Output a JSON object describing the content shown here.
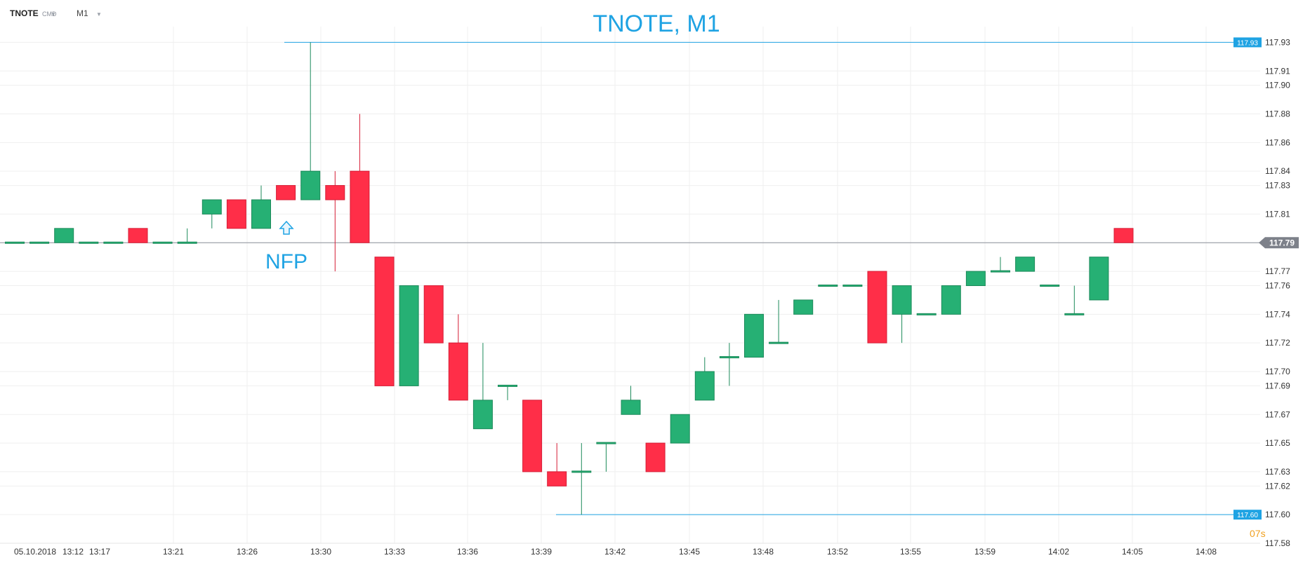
{
  "toolbar": {
    "symbol": "TNOTE",
    "type": "CMD",
    "interval": "M1"
  },
  "chart_data": {
    "type": "candlestick",
    "title": "TNOTE, M1",
    "annotation": "NFP",
    "countdown": "07s",
    "ylim": [
      117.58,
      117.94
    ],
    "y_ticks": [
      "117.93",
      "117.91",
      "117.90",
      "117.88",
      "117.86",
      "117.84",
      "117.83",
      "117.81",
      "117.79",
      "117.77",
      "117.76",
      "117.74",
      "117.72",
      "117.70",
      "117.69",
      "117.67",
      "117.65",
      "117.63",
      "117.62",
      "117.60",
      "117.58"
    ],
    "x_labels": [
      "05.10.2018",
      "13:12",
      "13:17",
      "13:21",
      "13:26",
      "13:30",
      "13:33",
      "13:36",
      "13:39",
      "13:42",
      "13:45",
      "13:48",
      "13:52",
      "13:55",
      "13:59",
      "14:02",
      "14:05",
      "14:08"
    ],
    "current_price": "117.79",
    "high_line": "117.93",
    "low_line": "117.60",
    "up_color": "#26b074",
    "down_color": "#ff2e48",
    "candles": [
      {
        "o": 117.79,
        "h": 117.79,
        "l": 117.79,
        "c": 117.79
      },
      {
        "o": 117.79,
        "h": 117.79,
        "l": 117.79,
        "c": 117.79
      },
      {
        "o": 117.79,
        "h": 117.8,
        "l": 117.79,
        "c": 117.8
      },
      {
        "o": 117.79,
        "h": 117.79,
        "l": 117.79,
        "c": 117.79
      },
      {
        "o": 117.79,
        "h": 117.79,
        "l": 117.79,
        "c": 117.79
      },
      {
        "o": 117.8,
        "h": 117.8,
        "l": 117.79,
        "c": 117.79
      },
      {
        "o": 117.79,
        "h": 117.79,
        "l": 117.79,
        "c": 117.79
      },
      {
        "o": 117.79,
        "h": 117.8,
        "l": 117.79,
        "c": 117.79
      },
      {
        "o": 117.81,
        "h": 117.82,
        "l": 117.8,
        "c": 117.82
      },
      {
        "o": 117.82,
        "h": 117.82,
        "l": 117.8,
        "c": 117.8
      },
      {
        "o": 117.8,
        "h": 117.83,
        "l": 117.8,
        "c": 117.82
      },
      {
        "o": 117.83,
        "h": 117.83,
        "l": 117.82,
        "c": 117.82
      },
      {
        "o": 117.82,
        "h": 117.93,
        "l": 117.82,
        "c": 117.84
      },
      {
        "o": 117.83,
        "h": 117.84,
        "l": 117.77,
        "c": 117.82
      },
      {
        "o": 117.84,
        "h": 117.88,
        "l": 117.79,
        "c": 117.79
      },
      {
        "o": 117.78,
        "h": 117.78,
        "l": 117.69,
        "c": 117.69
      },
      {
        "o": 117.69,
        "h": 117.76,
        "l": 117.69,
        "c": 117.76
      },
      {
        "o": 117.76,
        "h": 117.76,
        "l": 117.72,
        "c": 117.72
      },
      {
        "o": 117.72,
        "h": 117.74,
        "l": 117.68,
        "c": 117.68
      },
      {
        "o": 117.66,
        "h": 117.72,
        "l": 117.66,
        "c": 117.68
      },
      {
        "o": 117.69,
        "h": 117.69,
        "l": 117.68,
        "c": 117.69
      },
      {
        "o": 117.68,
        "h": 117.68,
        "l": 117.63,
        "c": 117.63
      },
      {
        "o": 117.63,
        "h": 117.65,
        "l": 117.62,
        "c": 117.62
      },
      {
        "o": 117.63,
        "h": 117.65,
        "l": 117.6,
        "c": 117.63
      },
      {
        "o": 117.65,
        "h": 117.65,
        "l": 117.63,
        "c": 117.65
      },
      {
        "o": 117.67,
        "h": 117.69,
        "l": 117.67,
        "c": 117.68
      },
      {
        "o": 117.65,
        "h": 117.65,
        "l": 117.63,
        "c": 117.63
      },
      {
        "o": 117.65,
        "h": 117.67,
        "l": 117.65,
        "c": 117.67
      },
      {
        "o": 117.68,
        "h": 117.71,
        "l": 117.68,
        "c": 117.7
      },
      {
        "o": 117.71,
        "h": 117.72,
        "l": 117.69,
        "c": 117.71
      },
      {
        "o": 117.71,
        "h": 117.74,
        "l": 117.71,
        "c": 117.74
      },
      {
        "o": 117.72,
        "h": 117.75,
        "l": 117.72,
        "c": 117.72
      },
      {
        "o": 117.74,
        "h": 117.75,
        "l": 117.74,
        "c": 117.75
      },
      {
        "o": 117.76,
        "h": 117.76,
        "l": 117.76,
        "c": 117.76
      },
      {
        "o": 117.76,
        "h": 117.76,
        "l": 117.76,
        "c": 117.76
      },
      {
        "o": 117.77,
        "h": 117.77,
        "l": 117.72,
        "c": 117.72
      },
      {
        "o": 117.74,
        "h": 117.76,
        "l": 117.72,
        "c": 117.76
      },
      {
        "o": 117.74,
        "h": 117.74,
        "l": 117.74,
        "c": 117.74
      },
      {
        "o": 117.74,
        "h": 117.76,
        "l": 117.74,
        "c": 117.76
      },
      {
        "o": 117.76,
        "h": 117.77,
        "l": 117.76,
        "c": 117.77
      },
      {
        "o": 117.77,
        "h": 117.78,
        "l": 117.77,
        "c": 117.77
      },
      {
        "o": 117.77,
        "h": 117.78,
        "l": 117.77,
        "c": 117.78
      },
      {
        "o": 117.76,
        "h": 117.76,
        "l": 117.76,
        "c": 117.76
      },
      {
        "o": 117.74,
        "h": 117.76,
        "l": 117.74,
        "c": 117.74
      },
      {
        "o": 117.75,
        "h": 117.78,
        "l": 117.75,
        "c": 117.78
      },
      {
        "o": 117.8,
        "h": 117.8,
        "l": 117.79,
        "c": 117.79
      }
    ]
  }
}
